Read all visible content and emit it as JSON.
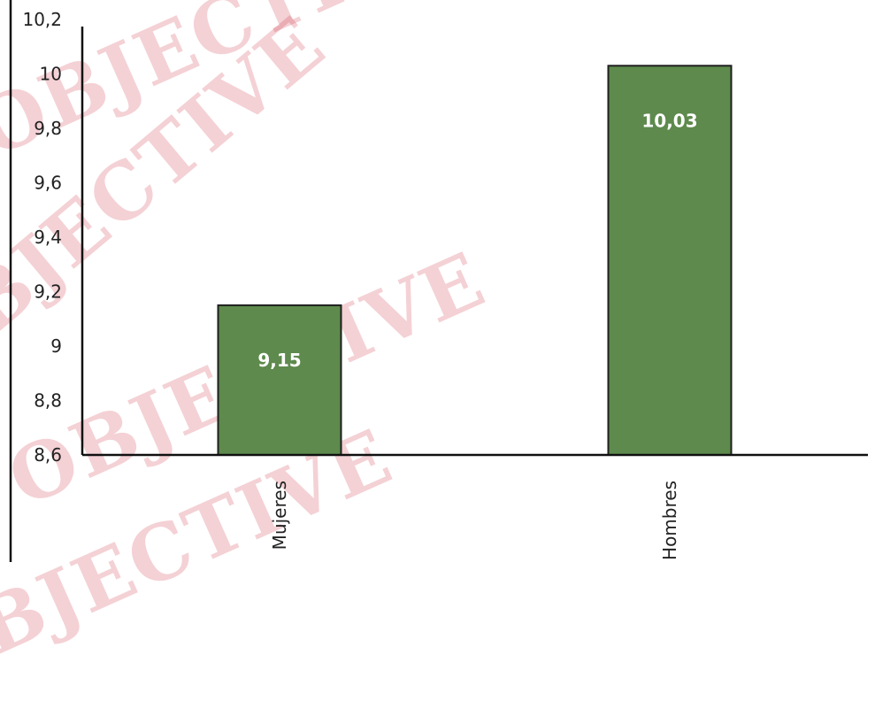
{
  "chart_data": {
    "type": "bar",
    "categories": [
      "Mujeres",
      "Hombres"
    ],
    "values": [
      9.15,
      10.03
    ],
    "data_labels": [
      "9,15",
      "10,03"
    ],
    "y_ticks": [
      "8,6",
      "8,8",
      "9",
      "9,2",
      "9,4",
      "9,6",
      "9,8",
      "10",
      "10,2"
    ],
    "ylim": [
      8.6,
      10.2
    ],
    "title": "",
    "xlabel": "",
    "ylabel": "",
    "grid": false,
    "bar_color": "#5e8a4d",
    "bar_edge_color": "#1f1f1f",
    "axis_color": "#111111"
  },
  "watermark": {
    "text": "OBJECTIVE",
    "color": "#cd2d41"
  }
}
